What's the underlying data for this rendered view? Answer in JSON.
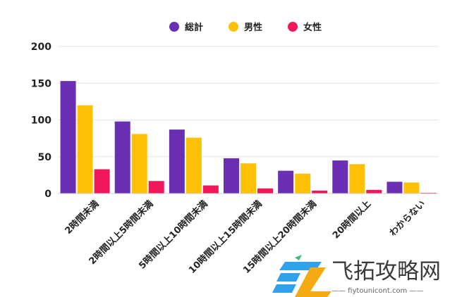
{
  "chart_data": {
    "type": "bar",
    "categories": [
      "2時間未満",
      "2時間以上5時間未満",
      "5時間以上10時間未満",
      "10時間以上15時間未満",
      "15時間以上20時間未満",
      "20時間以上",
      "わからない"
    ],
    "series": [
      {
        "name": "総計",
        "color": "#6B2FB3",
        "values": [
          153,
          98,
          87,
          48,
          31,
          45,
          16
        ]
      },
      {
        "name": "男性",
        "color": "#FFC107",
        "values": [
          120,
          81,
          76,
          41,
          27,
          40,
          15
        ]
      },
      {
        "name": "女性",
        "color": "#F0185A",
        "values": [
          33,
          17,
          11,
          7,
          4,
          5,
          1
        ]
      }
    ],
    "ylim": [
      0,
      200
    ],
    "yticks": [
      0,
      50,
      100,
      150,
      200
    ],
    "grid": true,
    "legend": "top-center"
  },
  "watermark": {
    "text": "飞拓攻略网",
    "subtext": "—— fiytounicont.com ——"
  }
}
